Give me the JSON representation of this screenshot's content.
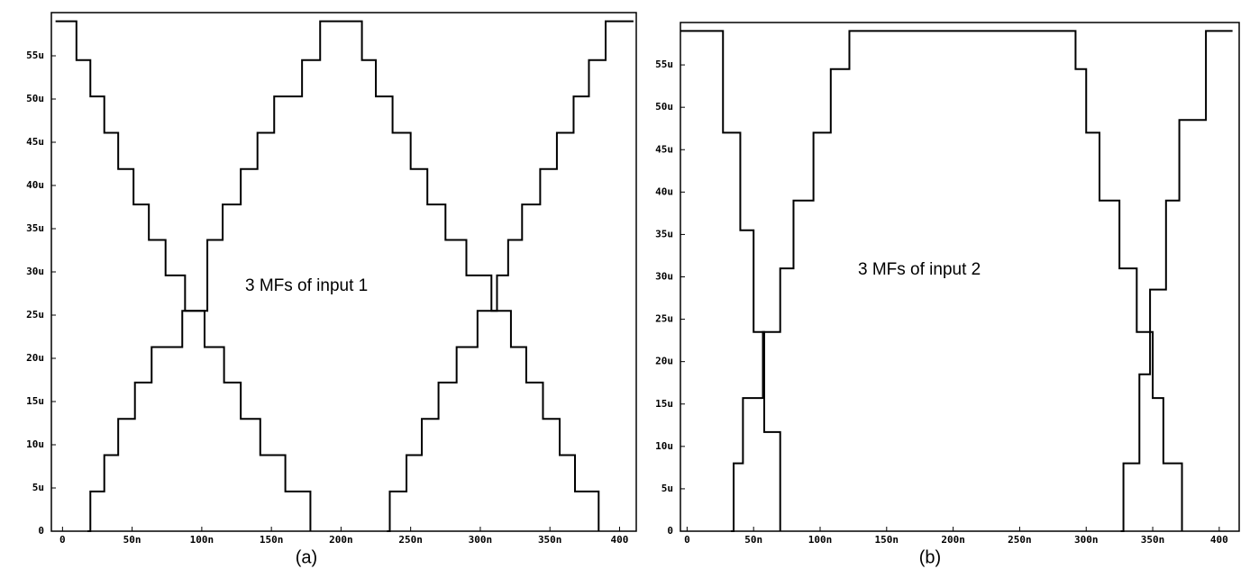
{
  "chart_data": [
    {
      "type": "step",
      "annotation": "3 MFs of input 1",
      "caption": "(a)",
      "xlim": [
        -8,
        412
      ],
      "ylim": [
        0,
        60
      ],
      "xticks": [
        0,
        {
          "value": 50,
          "label": "50n"
        },
        {
          "value": 100,
          "label": "100n"
        },
        {
          "value": 150,
          "label": "150n"
        },
        {
          "value": 200,
          "label": "200n"
        },
        {
          "value": 250,
          "label": "250n"
        },
        {
          "value": 300,
          "label": "300n"
        },
        {
          "value": 350,
          "label": "350n"
        },
        400
      ],
      "yticks": [
        0,
        {
          "value": 5,
          "label": "5u"
        },
        {
          "value": 10,
          "label": "10u"
        },
        {
          "value": 15,
          "label": "15u"
        },
        {
          "value": 20,
          "label": "20u"
        },
        {
          "value": 25,
          "label": "25u"
        },
        {
          "value": 30,
          "label": "30u"
        },
        {
          "value": 35,
          "label": "35u"
        },
        {
          "value": 40,
          "label": "40u"
        },
        {
          "value": 45,
          "label": "45u"
        },
        {
          "value": 50,
          "label": "50u"
        },
        {
          "value": 55,
          "label": "55u"
        }
      ],
      "series": [
        {
          "color": "#000000",
          "x": [
            -5,
            10,
            20,
            30,
            40,
            51,
            62,
            74,
            88,
            102,
            116,
            128,
            142,
            160,
            178
          ],
          "values": [
            59,
            54.5,
            50.3,
            46.1,
            41.9,
            37.8,
            33.7,
            29.6,
            25.5,
            21.3,
            17.2,
            13,
            8.8,
            4.6,
            0
          ]
        },
        {
          "color": "#000000",
          "x": [
            18,
            20,
            30,
            40,
            52,
            64,
            86,
            104,
            115,
            128,
            140,
            152,
            172,
            185,
            215,
            225,
            237,
            250,
            262,
            275,
            290,
            308,
            322,
            333,
            345,
            357,
            368,
            385
          ],
          "values": [
            0,
            4.6,
            8.8,
            13,
            17.2,
            21.3,
            25.5,
            33.7,
            37.8,
            41.9,
            46.1,
            50.3,
            54.5,
            59,
            54.5,
            50.3,
            46.1,
            41.9,
            37.8,
            33.7,
            29.6,
            25.5,
            21.3,
            17.2,
            13,
            8.8,
            4.6,
            0
          ]
        },
        {
          "color": "#000000",
          "x": [
            233,
            235,
            247,
            258,
            270,
            283,
            298,
            312,
            320,
            330,
            343,
            355,
            367,
            378,
            390,
            410
          ],
          "values": [
            0,
            4.6,
            8.8,
            13,
            17.2,
            21.3,
            25.5,
            29.6,
            33.7,
            37.8,
            41.9,
            46.1,
            50.3,
            54.5,
            59,
            59
          ]
        }
      ]
    },
    {
      "type": "step",
      "annotation": "3 MFs of input 2",
      "caption": "(b)",
      "xlim": [
        -5,
        415
      ],
      "ylim": [
        0,
        60
      ],
      "xticks": [
        0,
        {
          "value": 50,
          "label": "50n"
        },
        {
          "value": 100,
          "label": "100n"
        },
        {
          "value": 150,
          "label": "150n"
        },
        {
          "value": 200,
          "label": "200n"
        },
        {
          "value": 250,
          "label": "250n"
        },
        {
          "value": 300,
          "label": "300n"
        },
        {
          "value": 350,
          "label": "350n"
        },
        400
      ],
      "yticks": [
        0,
        {
          "value": 5,
          "label": "5u"
        },
        {
          "value": 10,
          "label": "10u"
        },
        {
          "value": 15,
          "label": "15u"
        },
        {
          "value": 20,
          "label": "20u"
        },
        {
          "value": 25,
          "label": "25u"
        },
        {
          "value": 30,
          "label": "30u"
        },
        {
          "value": 35,
          "label": "35u"
        },
        {
          "value": 40,
          "label": "40u"
        },
        {
          "value": 45,
          "label": "45u"
        },
        {
          "value": 50,
          "label": "50u"
        },
        {
          "value": 55,
          "label": "55u"
        }
      ],
      "series": [
        {
          "color": "#000000",
          "x": [
            -5,
            27,
            40,
            50,
            58,
            70
          ],
          "values": [
            59,
            47,
            35.5,
            23.5,
            11.7,
            0
          ]
        },
        {
          "color": "#000000",
          "x": [
            33,
            35,
            42,
            57,
            70,
            80,
            95,
            108,
            122,
            292,
            300,
            310,
            325,
            338,
            350,
            358,
            372
          ],
          "values": [
            0,
            8,
            15.7,
            23.5,
            31,
            39,
            47,
            54.5,
            59,
            54.5,
            47,
            39,
            31,
            23.5,
            15.7,
            8,
            0
          ]
        },
        {
          "color": "#000000",
          "x": [
            326,
            328,
            340,
            348,
            360,
            370,
            390,
            410
          ],
          "values": [
            0,
            8,
            18.5,
            28.5,
            39,
            48.5,
            59,
            59
          ]
        }
      ]
    }
  ]
}
